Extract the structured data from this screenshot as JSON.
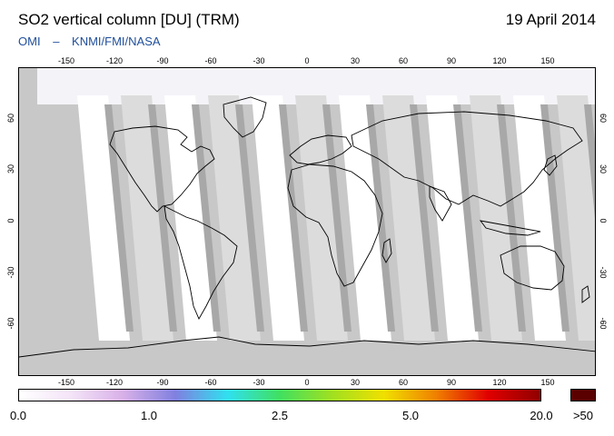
{
  "title": "SO2 vertical column [DU] (TRM)",
  "date": "19 April 2014",
  "subtitle": {
    "instrument": "OMI",
    "separator": "–",
    "agencies": "KNMI/FMI/NASA"
  },
  "map": {
    "projection": "equirectangular",
    "lon_ticks": [
      "-150",
      "-120",
      "-90",
      "-60",
      "-30",
      "0",
      "30",
      "60",
      "90",
      "120",
      "150"
    ],
    "lat_ticks": [
      "60",
      "30",
      "0",
      "-30",
      "-60"
    ],
    "lon_range": [
      -180,
      180
    ],
    "lat_range": [
      -90,
      90
    ],
    "colors": {
      "no_data": "#c8c8c8",
      "swath_light": "#dcdcdc",
      "swath_dark": "#a0a0a0",
      "low_value": "#ffffff",
      "coastline": "#000000"
    }
  },
  "colorbar": {
    "labels": [
      "0.0",
      "1.0",
      "2.5",
      "5.0",
      "20.0"
    ],
    "overflow_label": ">50",
    "overflow_color": "#5a0000",
    "stops": [
      "#ffffff",
      "#f4e4f8",
      "#d8b0e8",
      "#8080e0",
      "#30e0f0",
      "#40e060",
      "#a0e020",
      "#f0e000",
      "#f08000",
      "#e00000",
      "#900000"
    ]
  }
}
